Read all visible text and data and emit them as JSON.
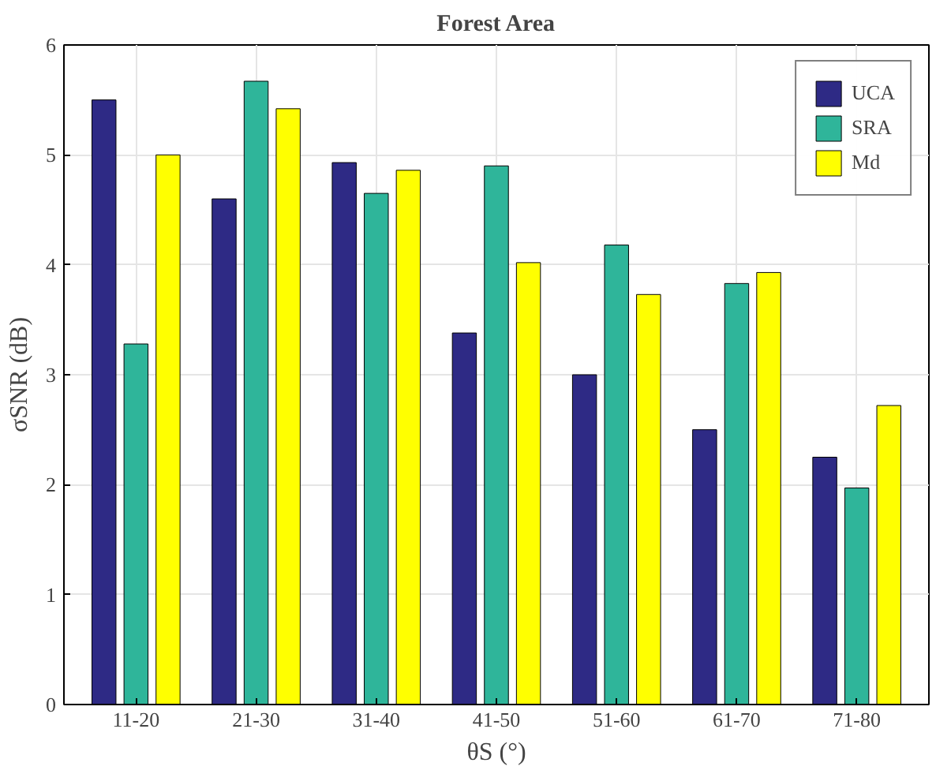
{
  "chart_data": {
    "type": "bar",
    "title": "Forest Area",
    "xlabel": "θS (°)",
    "ylabel": "σSNR (dB)",
    "categories": [
      "11-20",
      "21-30",
      "31-40",
      "41-50",
      "51-60",
      "61-70",
      "71-80"
    ],
    "series": [
      {
        "name": "UCA",
        "color": "#2e2a85",
        "values": [
          5.5,
          4.6,
          4.93,
          3.38,
          3.0,
          2.5,
          2.25
        ]
      },
      {
        "name": "SRA",
        "color": "#2fb59a",
        "values": [
          3.28,
          5.67,
          4.65,
          4.9,
          4.18,
          3.83,
          1.97
        ]
      },
      {
        "name": "Md",
        "color": "#ffff00",
        "values": [
          5.0,
          5.42,
          4.86,
          4.02,
          3.73,
          3.93,
          2.72
        ]
      }
    ],
    "ylim": [
      0,
      6
    ],
    "yticks": [
      0,
      1,
      2,
      3,
      4,
      5,
      6
    ],
    "grid": true,
    "legend": "top right"
  }
}
